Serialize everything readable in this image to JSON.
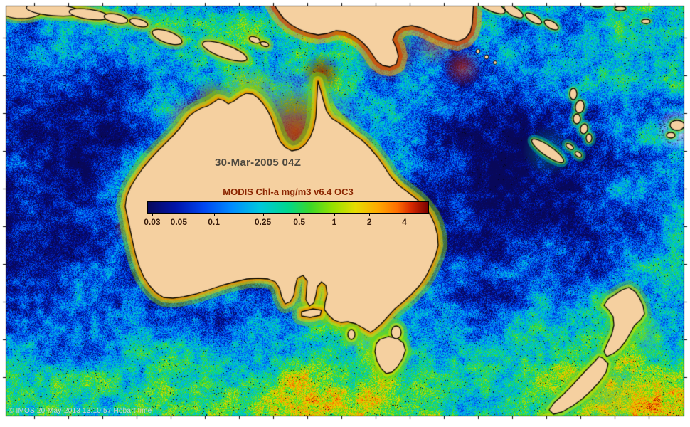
{
  "header": {
    "date_label": "30-Mar-2005 04Z"
  },
  "colorbar": {
    "title": "MODIS Chl-a mg/m3 v6.4 OC3",
    "ticks": [
      "0.03",
      "0.05",
      "0.1",
      "0.25",
      "0.5",
      "1",
      "2",
      "4"
    ],
    "tick_positions_pct": [
      1.5,
      11,
      23.5,
      41,
      54,
      66.5,
      79,
      91.5
    ]
  },
  "footer": {
    "credit": "© IMOS 20-May-2013 13:10:57 Hobart time"
  },
  "chart_data": {
    "type": "map",
    "title": "MODIS Chl-a mg/m3 v6.4 OC3",
    "timestamp": "30-Mar-2005 04Z",
    "units": "mg/m3",
    "scale": "log",
    "colorbar_ticks": [
      0.03,
      0.05,
      0.1,
      0.25,
      0.5,
      1,
      2,
      4
    ],
    "colorbar_colors": [
      "#08085a",
      "#0014aa",
      "#0046f0",
      "#008cff",
      "#00c8dc",
      "#00d78c",
      "#3cd728",
      "#96e100",
      "#e6dc00",
      "#ffaa00",
      "#ff6e00",
      "#d72800",
      "#780000"
    ],
    "colorbar_color_stops_pct": [
      0,
      10,
      20,
      30,
      40,
      50,
      58,
      66,
      74,
      82,
      89,
      94,
      100
    ],
    "land_color": "#f5d0a0"
  }
}
